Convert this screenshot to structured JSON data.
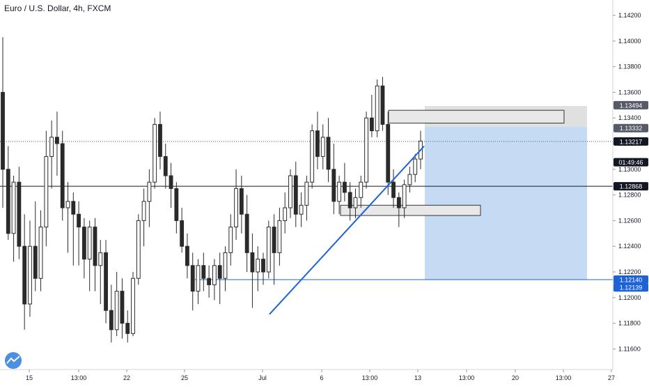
{
  "header": {
    "title": "Euro / U.S. Dollar, 4h, FXCM"
  },
  "colors": {
    "candle_up": "#ffffff",
    "candle_down": "#2a2a2a",
    "wick": "#2a2a2a",
    "trendline": "#1e63d6",
    "target_zone": "#c5dbf3",
    "stop_zone": "#e0e0e0",
    "support_line": "#1e63d6",
    "resistance_line": "#131722",
    "badge_dark": "#131722",
    "badge_gray": "#555a66",
    "badge_blue": "#1e63d6"
  },
  "price_badges": [
    {
      "value": "1.13494",
      "price": 1.13494,
      "style": "gray"
    },
    {
      "value": "1.13332",
      "price": 1.13332,
      "style": "gray"
    },
    {
      "value": "1.13217",
      "price": 1.13217,
      "style": "dark"
    },
    {
      "value": "01:49:46",
      "price": 1.13055,
      "style": "dark"
    },
    {
      "value": "1.12868",
      "price": 1.12868,
      "style": "dark"
    },
    {
      "value": "1.12140",
      "price": 1.1214,
      "style": "blue"
    },
    {
      "value": "1.12139",
      "price": 1.12139,
      "style": "blue"
    }
  ],
  "watermark": {
    "icon": "tradingview-logo-icon"
  },
  "chart_data": {
    "type": "candlestick",
    "title": "Euro / U.S. Dollar, 4h, FXCM",
    "ylim": [
      1.1148,
      1.1437
    ],
    "y_ticks": [
      "1.14200",
      "1.14000",
      "1.13800",
      "1.13600",
      "1.13400",
      "1.13200",
      "1.13000",
      "1.12800",
      "1.12600",
      "1.12400",
      "1.12200",
      "1.12000",
      "1.11800",
      "1.11600"
    ],
    "x_ticks": [
      "15",
      "13:00",
      "22",
      "25",
      "Jul",
      "6",
      "13:00",
      "13",
      "13:00",
      "20",
      "13:00",
      "27"
    ],
    "candles_ohlc": [
      [
        1.136,
        1.1403,
        1.127,
        1.13
      ],
      [
        1.13,
        1.1318,
        1.1245,
        1.125
      ],
      [
        1.125,
        1.1295,
        1.1228,
        1.129
      ],
      [
        1.129,
        1.1302,
        1.123,
        1.124
      ],
      [
        1.124,
        1.1265,
        1.1175,
        1.1195
      ],
      [
        1.1195,
        1.126,
        1.1185,
        1.124
      ],
      [
        1.124,
        1.1275,
        1.1205,
        1.1215
      ],
      [
        1.1215,
        1.1268,
        1.1205,
        1.1255
      ],
      [
        1.1255,
        1.133,
        1.124,
        1.131
      ],
      [
        1.131,
        1.1338,
        1.1285,
        1.1325
      ],
      [
        1.1325,
        1.1345,
        1.1295,
        1.132
      ],
      [
        1.132,
        1.133,
        1.126,
        1.127
      ],
      [
        1.127,
        1.129,
        1.1235,
        1.1275
      ],
      [
        1.1275,
        1.1282,
        1.1225,
        1.1265
      ],
      [
        1.1265,
        1.1275,
        1.1225,
        1.1255
      ],
      [
        1.1255,
        1.1262,
        1.1215,
        1.123
      ],
      [
        1.123,
        1.126,
        1.1205,
        1.1255
      ],
      [
        1.1255,
        1.1262,
        1.1205,
        1.1225
      ],
      [
        1.1225,
        1.1245,
        1.1195,
        1.1235
      ],
      [
        1.1235,
        1.1245,
        1.118,
        1.119
      ],
      [
        1.119,
        1.121,
        1.1165,
        1.1175
      ],
      [
        1.1175,
        1.122,
        1.117,
        1.1205
      ],
      [
        1.1205,
        1.1215,
        1.1168,
        1.118
      ],
      [
        1.118,
        1.119,
        1.1165,
        1.1172
      ],
      [
        1.1172,
        1.122,
        1.117,
        1.1215
      ],
      [
        1.1215,
        1.1265,
        1.121,
        1.126
      ],
      [
        1.126,
        1.1285,
        1.124,
        1.1275
      ],
      [
        1.1275,
        1.13,
        1.1255,
        1.129
      ],
      [
        1.129,
        1.134,
        1.1285,
        1.1335
      ],
      [
        1.1335,
        1.1345,
        1.13,
        1.131
      ],
      [
        1.131,
        1.132,
        1.1285,
        1.1295
      ],
      [
        1.1295,
        1.1305,
        1.127,
        1.1285
      ],
      [
        1.1285,
        1.129,
        1.125,
        1.126
      ],
      [
        1.126,
        1.127,
        1.1235,
        1.124
      ],
      [
        1.124,
        1.125,
        1.1215,
        1.1225
      ],
      [
        1.1225,
        1.1235,
        1.119,
        1.1205
      ],
      [
        1.1205,
        1.123,
        1.1195,
        1.1225
      ],
      [
        1.1225,
        1.1235,
        1.1205,
        1.1215
      ],
      [
        1.1215,
        1.1225,
        1.12,
        1.121
      ],
      [
        1.121,
        1.123,
        1.1198,
        1.1225
      ],
      [
        1.1225,
        1.1235,
        1.1195,
        1.1215
      ],
      [
        1.1215,
        1.124,
        1.1205,
        1.1235
      ],
      [
        1.1235,
        1.1265,
        1.1225,
        1.1255
      ],
      [
        1.1255,
        1.13,
        1.1245,
        1.1285
      ],
      [
        1.1285,
        1.1295,
        1.125,
        1.1265
      ],
      [
        1.1265,
        1.128,
        1.122,
        1.1235
      ],
      [
        1.1235,
        1.125,
        1.1192,
        1.122
      ],
      [
        1.122,
        1.124,
        1.1205,
        1.123
      ],
      [
        1.123,
        1.1235,
        1.121,
        1.122
      ],
      [
        1.122,
        1.126,
        1.1215,
        1.1255
      ],
      [
        1.1255,
        1.1265,
        1.121,
        1.1235
      ],
      [
        1.1235,
        1.127,
        1.1225,
        1.126
      ],
      [
        1.126,
        1.1282,
        1.125,
        1.127
      ],
      [
        1.127,
        1.13,
        1.1262,
        1.1295
      ],
      [
        1.1295,
        1.1306,
        1.1255,
        1.1265
      ],
      [
        1.1265,
        1.1282,
        1.1255,
        1.1272
      ],
      [
        1.1272,
        1.1295,
        1.126,
        1.129
      ],
      [
        1.129,
        1.1335,
        1.1285,
        1.133
      ],
      [
        1.133,
        1.1345,
        1.13,
        1.131
      ],
      [
        1.131,
        1.1335,
        1.13,
        1.1325
      ],
      [
        1.1325,
        1.134,
        1.129,
        1.13
      ],
      [
        1.13,
        1.132,
        1.1265,
        1.1275
      ],
      [
        1.1275,
        1.1295,
        1.1265,
        1.129
      ],
      [
        1.129,
        1.1305,
        1.1275,
        1.1282
      ],
      [
        1.1282,
        1.129,
        1.126,
        1.127
      ],
      [
        1.127,
        1.1285,
        1.1262,
        1.1278
      ],
      [
        1.1278,
        1.1295,
        1.127,
        1.129
      ],
      [
        1.129,
        1.1345,
        1.1285,
        1.134
      ],
      [
        1.134,
        1.1358,
        1.1325,
        1.133
      ],
      [
        1.133,
        1.137,
        1.1325,
        1.1365
      ],
      [
        1.1365,
        1.1372,
        1.133,
        1.1335
      ],
      [
        1.1335,
        1.1345,
        1.128,
        1.129
      ],
      [
        1.129,
        1.13,
        1.127,
        1.1278
      ],
      [
        1.1278,
        1.1282,
        1.1255,
        1.127
      ],
      [
        1.127,
        1.1292,
        1.1262,
        1.1288
      ],
      [
        1.1288,
        1.1302,
        1.1282,
        1.1296
      ],
      [
        1.1296,
        1.1312,
        1.129,
        1.1308
      ],
      [
        1.1308,
        1.133,
        1.13,
        1.1322
      ]
    ],
    "annotations": {
      "resistance_level": 1.12868,
      "support_level": 1.1214,
      "current_price": 1.13217,
      "position_target_top": 1.13494,
      "position_entry": 1.13332,
      "position_stop": 1.1214,
      "trendline": [
        [
          1.1187,
          1.1318
        ]
      ],
      "boxes": [
        {
          "top": 1.1346,
          "bottom": 1.1336
        },
        {
          "top": 1.1272,
          "bottom": 1.1264
        }
      ]
    }
  }
}
